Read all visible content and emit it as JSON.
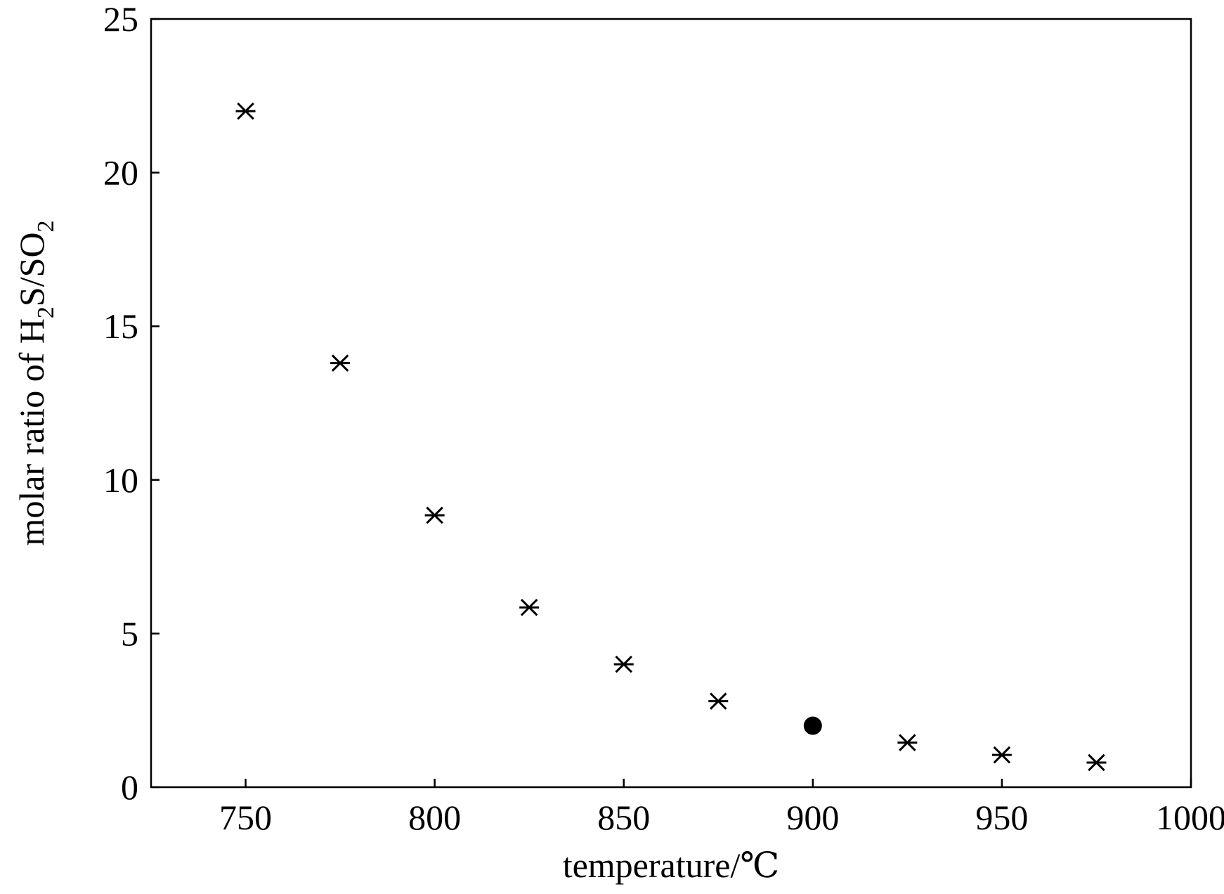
{
  "chart_data": {
    "type": "scatter",
    "title": "",
    "xlabel": "temperature/℃",
    "ylabel": {
      "parts": [
        "molar ratio of H",
        "2",
        "S/SO",
        "2"
      ]
    },
    "xlim": [
      725,
      1000
    ],
    "ylim": [
      0,
      25
    ],
    "xticks": [
      750,
      800,
      850,
      900,
      950,
      1000
    ],
    "yticks": [
      0,
      5,
      10,
      15,
      20,
      25
    ],
    "grid": false,
    "series": [
      {
        "marker": "asterisk",
        "color": "#000000",
        "points": [
          {
            "x": 750,
            "y": 22.0
          },
          {
            "x": 775,
            "y": 13.8
          },
          {
            "x": 800,
            "y": 8.85
          },
          {
            "x": 825,
            "y": 5.85
          },
          {
            "x": 850,
            "y": 4.0
          },
          {
            "x": 875,
            "y": 2.8
          },
          {
            "x": 925,
            "y": 1.45
          },
          {
            "x": 950,
            "y": 1.05
          },
          {
            "x": 975,
            "y": 0.8
          }
        ]
      },
      {
        "marker": "filled-circle",
        "color": "#000000",
        "points": [
          {
            "x": 900,
            "y": 2.0
          }
        ]
      }
    ]
  }
}
